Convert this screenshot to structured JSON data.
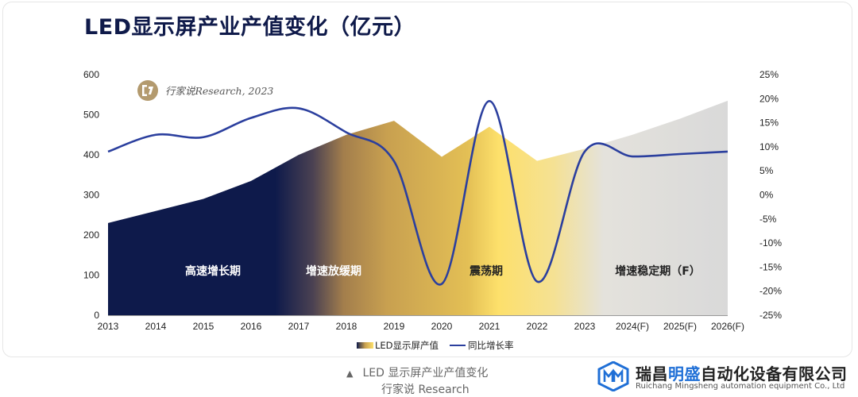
{
  "title": "LED显示屏产业产值变化（亿元）",
  "watermark": {
    "text": "行家说Research, 2023",
    "icon": "quote-badge-icon"
  },
  "chart_data": {
    "type": "area",
    "categories": [
      "2013",
      "2014",
      "2015",
      "2016",
      "2017",
      "2018",
      "2019",
      "2020",
      "2021",
      "2022",
      "2023",
      "2024(F)",
      "2025(F)",
      "2026(F)"
    ],
    "series": [
      {
        "name": "LED显示屏产值",
        "type": "area",
        "axis": "left",
        "values": [
          230,
          260,
          290,
          335,
          400,
          450,
          485,
          395,
          470,
          385,
          415,
          450,
          490,
          535
        ]
      },
      {
        "name": "同比增长率",
        "type": "line",
        "axis": "right",
        "values": [
          9.0,
          12.5,
          12.0,
          16.0,
          18.0,
          13.0,
          7.0,
          -18.5,
          19.5,
          -18.0,
          9.0,
          8.0,
          8.5,
          9.0
        ]
      }
    ],
    "y_left": {
      "ticks": [
        "0",
        "100",
        "200",
        "300",
        "400",
        "500",
        "600"
      ],
      "ylim": [
        0,
        600
      ]
    },
    "y_right": {
      "ticks": [
        "25%",
        "20%",
        "15%",
        "10%",
        "5%",
        "0%",
        "-5%",
        "-10%",
        "-15%",
        "-20%",
        "-25%"
      ],
      "ylim": [
        -25,
        25
      ]
    },
    "phases": [
      "高速增长期",
      "增速放缓期",
      "震荡期",
      "增速稳定期（F）"
    ],
    "legend_position": "bottom",
    "grid": false,
    "colors": {
      "navy": "#0e1a4b",
      "gold": "#c9a04f",
      "yellow": "#ffe066",
      "grey": "#d9d9d9",
      "line": "#2b3f9e"
    }
  },
  "caption": {
    "line1": "LED 显示屏产业产值变化",
    "line2": "行家说 Research",
    "icon": "triangle-up-icon"
  },
  "logo": {
    "name_prefix": "瑞昌",
    "name_accent": "明盛",
    "name_suffix": "自动化设备有限公司",
    "english": "Ruichang Mingsheng automation equipment Co., Ltd",
    "icon": "mm-hexagon-logo-icon"
  }
}
